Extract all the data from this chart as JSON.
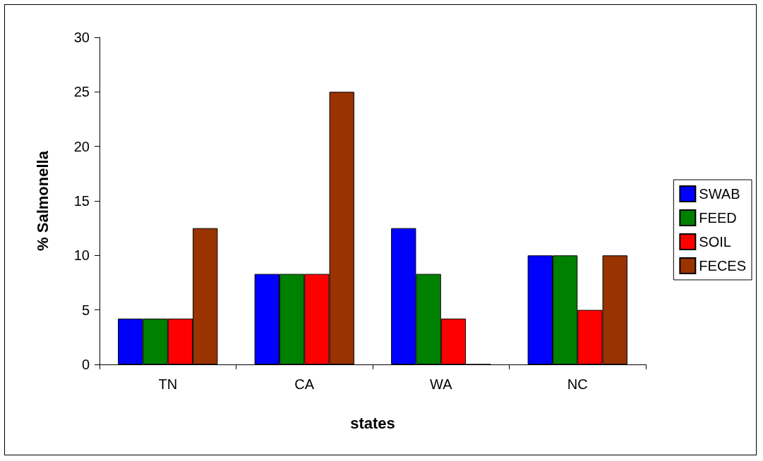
{
  "chart_data": {
    "type": "bar",
    "xlabel": "states",
    "ylabel": "% Salmonella",
    "categories": [
      "TN",
      "CA",
      "WA",
      "NC"
    ],
    "series": [
      {
        "name": "SWAB",
        "color": "#0000ff",
        "values": [
          4.2,
          8.3,
          12.5,
          10
        ]
      },
      {
        "name": "FEED",
        "color": "#008000",
        "values": [
          4.2,
          8.3,
          8.3,
          10
        ]
      },
      {
        "name": "SOIL",
        "color": "#ff0000",
        "values": [
          4.2,
          8.3,
          4.2,
          5
        ]
      },
      {
        "name": "FECES",
        "color": "#993300",
        "values": [
          12.5,
          25,
          0,
          10
        ]
      }
    ],
    "ylim": [
      0,
      30
    ],
    "yticks": [
      0,
      5,
      10,
      15,
      20,
      25,
      30
    ],
    "grid": false,
    "legend": "right"
  }
}
